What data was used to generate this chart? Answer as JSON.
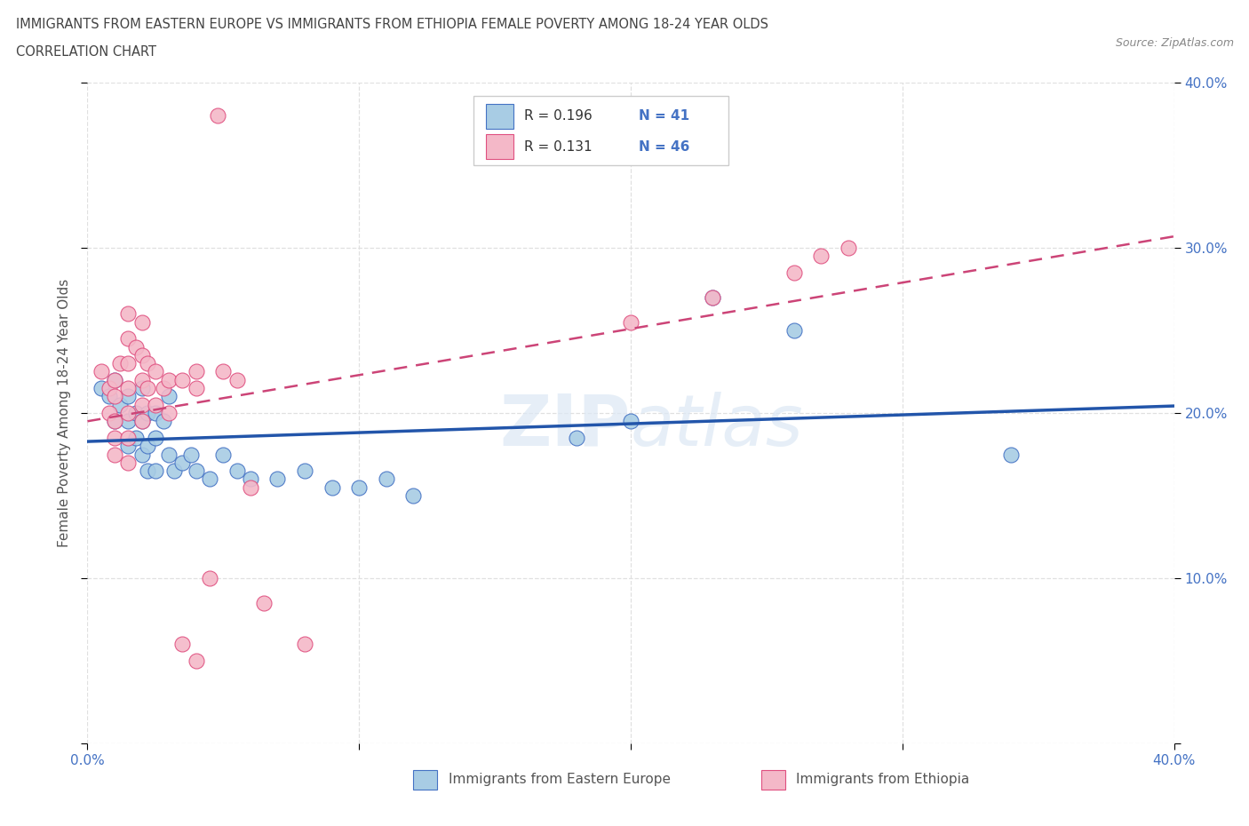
{
  "title_line1": "IMMIGRANTS FROM EASTERN EUROPE VS IMMIGRANTS FROM ETHIOPIA FEMALE POVERTY AMONG 18-24 YEAR OLDS",
  "title_line2": "CORRELATION CHART",
  "source_text": "Source: ZipAtlas.com",
  "ylabel": "Female Poverty Among 18-24 Year Olds",
  "xlim": [
    0.0,
    0.4
  ],
  "ylim": [
    0.0,
    0.4
  ],
  "watermark": "ZIPatlas",
  "legend_entry1_R": "0.196",
  "legend_entry1_N": "41",
  "legend_entry2_R": "0.131",
  "legend_entry2_N": "46",
  "legend_label1": "Immigrants from Eastern Europe",
  "legend_label2": "Immigrants from Ethiopia",
  "blue_color": "#a8cce4",
  "pink_color": "#f4b8c8",
  "blue_edge_color": "#4472c4",
  "pink_edge_color": "#e05080",
  "blue_line_color": "#2255aa",
  "pink_line_color": "#cc4477",
  "tick_color": "#4472c4",
  "grid_color": "#e0e0e0",
  "blue_scatter": [
    [
      0.005,
      0.215
    ],
    [
      0.008,
      0.21
    ],
    [
      0.01,
      0.22
    ],
    [
      0.01,
      0.195
    ],
    [
      0.012,
      0.205
    ],
    [
      0.015,
      0.21
    ],
    [
      0.015,
      0.195
    ],
    [
      0.015,
      0.18
    ],
    [
      0.018,
      0.2
    ],
    [
      0.018,
      0.185
    ],
    [
      0.02,
      0.215
    ],
    [
      0.02,
      0.195
    ],
    [
      0.02,
      0.175
    ],
    [
      0.022,
      0.2
    ],
    [
      0.022,
      0.18
    ],
    [
      0.022,
      0.165
    ],
    [
      0.025,
      0.2
    ],
    [
      0.025,
      0.185
    ],
    [
      0.025,
      0.165
    ],
    [
      0.028,
      0.195
    ],
    [
      0.03,
      0.21
    ],
    [
      0.03,
      0.175
    ],
    [
      0.032,
      0.165
    ],
    [
      0.035,
      0.17
    ],
    [
      0.038,
      0.175
    ],
    [
      0.04,
      0.165
    ],
    [
      0.045,
      0.16
    ],
    [
      0.05,
      0.175
    ],
    [
      0.055,
      0.165
    ],
    [
      0.06,
      0.16
    ],
    [
      0.07,
      0.16
    ],
    [
      0.08,
      0.165
    ],
    [
      0.09,
      0.155
    ],
    [
      0.1,
      0.155
    ],
    [
      0.11,
      0.16
    ],
    [
      0.12,
      0.15
    ],
    [
      0.18,
      0.185
    ],
    [
      0.2,
      0.195
    ],
    [
      0.23,
      0.27
    ],
    [
      0.26,
      0.25
    ],
    [
      0.34,
      0.175
    ]
  ],
  "pink_scatter": [
    [
      0.005,
      0.225
    ],
    [
      0.008,
      0.215
    ],
    [
      0.008,
      0.2
    ],
    [
      0.01,
      0.22
    ],
    [
      0.01,
      0.21
    ],
    [
      0.01,
      0.195
    ],
    [
      0.01,
      0.185
    ],
    [
      0.01,
      0.175
    ],
    [
      0.012,
      0.23
    ],
    [
      0.015,
      0.26
    ],
    [
      0.015,
      0.245
    ],
    [
      0.015,
      0.23
    ],
    [
      0.015,
      0.215
    ],
    [
      0.015,
      0.2
    ],
    [
      0.015,
      0.185
    ],
    [
      0.015,
      0.17
    ],
    [
      0.018,
      0.24
    ],
    [
      0.02,
      0.255
    ],
    [
      0.02,
      0.235
    ],
    [
      0.02,
      0.22
    ],
    [
      0.02,
      0.205
    ],
    [
      0.02,
      0.195
    ],
    [
      0.022,
      0.23
    ],
    [
      0.022,
      0.215
    ],
    [
      0.025,
      0.225
    ],
    [
      0.025,
      0.205
    ],
    [
      0.028,
      0.215
    ],
    [
      0.03,
      0.22
    ],
    [
      0.03,
      0.2
    ],
    [
      0.035,
      0.22
    ],
    [
      0.04,
      0.215
    ],
    [
      0.04,
      0.225
    ],
    [
      0.045,
      0.1
    ],
    [
      0.048,
      0.38
    ],
    [
      0.06,
      0.155
    ],
    [
      0.065,
      0.085
    ],
    [
      0.08,
      0.06
    ],
    [
      0.2,
      0.255
    ],
    [
      0.23,
      0.27
    ],
    [
      0.26,
      0.285
    ],
    [
      0.27,
      0.295
    ],
    [
      0.28,
      0.3
    ],
    [
      0.05,
      0.225
    ],
    [
      0.055,
      0.22
    ],
    [
      0.035,
      0.06
    ],
    [
      0.04,
      0.05
    ]
  ]
}
